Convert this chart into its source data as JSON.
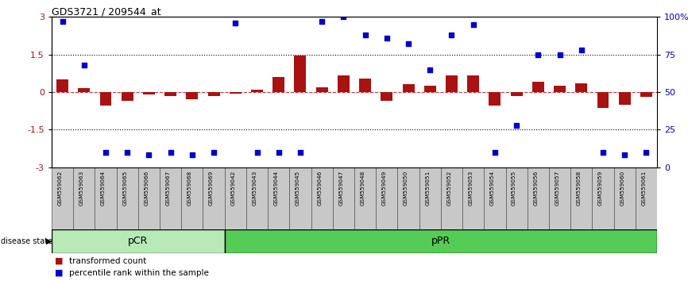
{
  "title": "GDS3721 / 209544_at",
  "samples": [
    "GSM559062",
    "GSM559063",
    "GSM559064",
    "GSM559065",
    "GSM559066",
    "GSM559067",
    "GSM559068",
    "GSM559069",
    "GSM559042",
    "GSM559043",
    "GSM559044",
    "GSM559045",
    "GSM559046",
    "GSM559047",
    "GSM559048",
    "GSM559049",
    "GSM559050",
    "GSM559051",
    "GSM559052",
    "GSM559053",
    "GSM559054",
    "GSM559055",
    "GSM559056",
    "GSM559057",
    "GSM559058",
    "GSM559059",
    "GSM559060",
    "GSM559061"
  ],
  "transformed_count": [
    0.5,
    0.15,
    -0.55,
    -0.35,
    -0.1,
    -0.15,
    -0.3,
    -0.15,
    -0.05,
    0.1,
    0.6,
    1.45,
    0.2,
    0.65,
    0.55,
    -0.35,
    0.3,
    0.25,
    0.65,
    0.65,
    -0.55,
    -0.15,
    0.4,
    0.25,
    0.35,
    -0.65,
    -0.5,
    -0.2
  ],
  "percentile_rank": [
    97,
    68,
    10,
    10,
    8,
    10,
    8,
    10,
    96,
    10,
    10,
    10,
    97,
    100,
    88,
    86,
    82,
    65,
    88,
    95,
    10,
    28,
    75,
    75,
    78,
    10,
    8,
    10
  ],
  "pCR_count": 8,
  "pPR_count": 20,
  "bar_color": "#aa1111",
  "dot_color": "#0000cc",
  "pCR_color": "#b8eab8",
  "pPR_color": "#55cc55",
  "label_bg": "#c8c8c8",
  "yticks_left": [
    -3,
    -1.5,
    0,
    1.5,
    3
  ],
  "ytick_labels_left": [
    "-3",
    "-1.5",
    "0",
    "1.5",
    "3"
  ],
  "ytick_labels_right": [
    "0",
    "25",
    "50",
    "75",
    "100%"
  ],
  "zero_dashed_color": "#cc3333",
  "ref_dotted_color": "black"
}
